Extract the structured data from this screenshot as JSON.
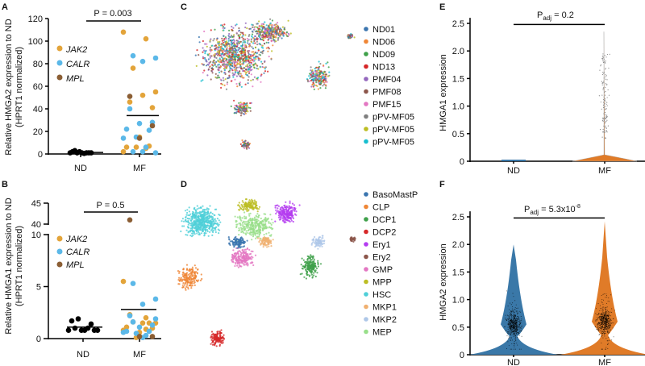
{
  "colors": {
    "JAK2": "#e3a43a",
    "CALR": "#5bb8e8",
    "MPL": "#8b5e34",
    "ND_violin": "#3a78a8",
    "MF_violin": "#e07b28"
  },
  "panels": {
    "A": "A",
    "B": "B",
    "C": "C",
    "D": "D",
    "E": "E",
    "F": "F"
  },
  "chart_data": [
    {
      "id": "A",
      "type": "scatter",
      "ylabel": [
        "Relative HMGA2 expression to ND",
        "(HPRT1 normalized)"
      ],
      "categories": [
        "ND",
        "MF"
      ],
      "ylim": [
        0,
        120
      ],
      "yticks": [
        0,
        20,
        40,
        60,
        80,
        100,
        120
      ],
      "pvalue": "P = 0.003",
      "legend": [
        "JAK2",
        "CALR",
        "MPL"
      ],
      "legend_position": "top-left",
      "ND": [
        1,
        2,
        3,
        1,
        2,
        1,
        0.5,
        1,
        1,
        1
      ],
      "ND_mean": 1.3,
      "MF": {
        "JAK2": [
          108,
          102,
          76,
          55,
          52,
          46,
          41,
          15,
          6,
          7,
          6,
          2,
          5
        ],
        "CALR": [
          87,
          85,
          82,
          40,
          28,
          27,
          22,
          21,
          15,
          14,
          6,
          2,
          1,
          2
        ],
        "MPL": [
          51,
          25,
          14
        ]
      },
      "MF_mean": 34
    },
    {
      "id": "B",
      "type": "scatter",
      "ylabel": [
        "Relative HMGA1 expression to ND",
        "(HPRT1 normalized)"
      ],
      "categories": [
        "ND",
        "MF"
      ],
      "ylim": [
        0,
        45
      ],
      "axis_break": [
        10,
        40
      ],
      "yticks": [
        0,
        5,
        10,
        40,
        45
      ],
      "pvalue": "P = 0.5",
      "legend": [
        "JAK2",
        "CALR",
        "MPL"
      ],
      "legend_position": "top-left",
      "ND": [
        0.8,
        1.7,
        1.0,
        1.9,
        0.8,
        0.8,
        1.0,
        1.4,
        0.8,
        0.8
      ],
      "ND_mean": 1.1,
      "MF": {
        "JAK2": [
          5.5,
          2.0,
          1.6,
          1.5,
          1.5,
          2.3,
          1.0,
          0.6,
          1.1,
          1.5,
          0.1,
          0.8,
          0.9
        ],
        "CALR": [
          5.3,
          3.8,
          3.3,
          2.2,
          1.3,
          1.1,
          0.7,
          0.7,
          0.5,
          0.6,
          0.3,
          1.6,
          1.9,
          0.1
        ],
        "MPL": [
          41,
          0.2,
          0.2
        ]
      },
      "MF_mean": 2.8
    },
    {
      "id": "C",
      "type": "scatter",
      "subtype": "umap",
      "legend": [
        "ND01",
        "ND06",
        "ND09",
        "ND13",
        "PMF04",
        "PMF08",
        "PMF15",
        "pPV-MF05",
        "pPV-MF05",
        "pPV-MF05"
      ],
      "legend_colors": [
        "#3b75af",
        "#ef8636",
        "#3fa04a",
        "#d62728",
        "#9467bd",
        "#8c564b",
        "#e377c2",
        "#7f7f7f",
        "#bcbd22",
        "#17becf"
      ],
      "legend_position": "right"
    },
    {
      "id": "D",
      "type": "scatter",
      "subtype": "umap",
      "legend": [
        "BasoMastP",
        "CLP",
        "DCP1",
        "DCP2",
        "Ery1",
        "Ery2",
        "GMP",
        "MPP",
        "HSC",
        "MKP1",
        "MKP2",
        "MEP"
      ],
      "legend_colors": [
        "#3b75af",
        "#ef8636",
        "#3fa04a",
        "#d62728",
        "#b43cf0",
        "#8c564b",
        "#e377c2",
        "#bcbd22",
        "#4fcfd8",
        "#f0b070",
        "#aec7e8",
        "#98df8a"
      ],
      "legend_position": "right"
    },
    {
      "id": "E",
      "type": "violin",
      "ylabel": "HMGA1 expression",
      "categories": [
        "ND",
        "MF"
      ],
      "ylim": [
        0,
        2.6
      ],
      "yticks": [
        "0",
        "0.5",
        "1.0",
        "1.5",
        "2.0",
        "2.5"
      ],
      "pvalue_main": "P",
      "pvalue_sub": "adj",
      "pvalue_rest": " = 0.2",
      "ND_max": 0.02,
      "MF_max": 2.35,
      "MF_points_range": [
        0.4,
        1.95
      ]
    },
    {
      "id": "F",
      "type": "violin",
      "ylabel": "HMGA2 expression",
      "categories": [
        "ND",
        "MF"
      ],
      "ylim": [
        0,
        2.6
      ],
      "yticks": [
        "0",
        "0.5",
        "1.0",
        "1.5",
        "2.0",
        "2.5"
      ],
      "pvalue_main": "P",
      "pvalue_sub": "adj",
      "pvalue_rest": " = 5.3x10",
      "pvalue_sup": "-8",
      "ND_max": 2.0,
      "MF_max": 2.42,
      "ND_mode": 0.55,
      "MF_mode": 0.6
    }
  ]
}
